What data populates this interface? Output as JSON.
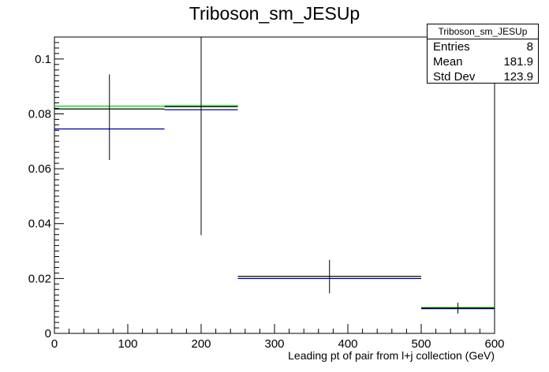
{
  "chart_data": {
    "type": "histogram",
    "title": "Triboson_sm_JESUp",
    "xlabel": "Leading pt of pair from l+j collection (GeV)",
    "ylabel": "",
    "xlim": [
      0,
      600
    ],
    "ylim": [
      0,
      0.108
    ],
    "x_ticks": [
      "0",
      "100",
      "200",
      "300",
      "400",
      "500",
      "600"
    ],
    "y_ticks": [
      "0",
      "0.02",
      "0.04",
      "0.06",
      "0.08",
      "0.1"
    ],
    "grid": false,
    "bin_edges": [
      0,
      150,
      250,
      500,
      600
    ],
    "series": [
      {
        "color": "#000000",
        "values": [
          0.0818,
          0.0826,
          0.0208,
          0.0092
        ],
        "errors": [
          [
            0.0632,
            0.0944
          ],
          [
            0.0358,
            0.108
          ],
          [
            0.0146,
            0.0268
          ],
          [
            0.0072,
            0.0112
          ]
        ]
      },
      {
        "color": "#00cc00",
        "values": [
          0.0828,
          0.083,
          0.02,
          0.0094
        ]
      },
      {
        "color": "#0000aa",
        "values": [
          0.0745,
          0.0815,
          0.02,
          0.009
        ]
      }
    ],
    "stats_box": {
      "title": "Triboson_sm_JESUp",
      "rows": [
        {
          "label": "Entries",
          "value": "8"
        },
        {
          "label": "Mean",
          "value": "181.9"
        },
        {
          "label": "Std Dev",
          "value": "123.9"
        }
      ]
    }
  }
}
